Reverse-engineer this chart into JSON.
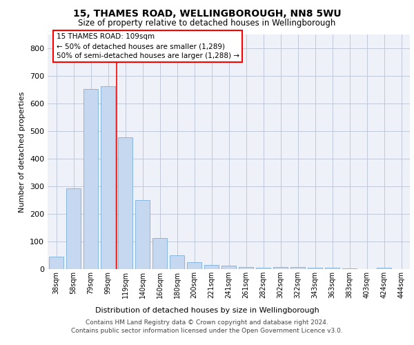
{
  "title_line1": "15, THAMES ROAD, WELLINGBOROUGH, NN8 5WU",
  "title_line2": "Size of property relative to detached houses in Wellingborough",
  "xlabel": "Distribution of detached houses by size in Wellingborough",
  "ylabel": "Number of detached properties",
  "categories": [
    "38sqm",
    "58sqm",
    "79sqm",
    "99sqm",
    "119sqm",
    "140sqm",
    "160sqm",
    "180sqm",
    "200sqm",
    "221sqm",
    "241sqm",
    "261sqm",
    "282sqm",
    "302sqm",
    "322sqm",
    "343sqm",
    "363sqm",
    "383sqm",
    "403sqm",
    "424sqm",
    "444sqm"
  ],
  "values": [
    45,
    293,
    652,
    662,
    478,
    250,
    113,
    50,
    25,
    14,
    13,
    8,
    5,
    8,
    7,
    4,
    4,
    2,
    1,
    5,
    1
  ],
  "bar_color": "#c5d8f0",
  "bar_edge_color": "#7ab0d8",
  "grid_color": "#c0c8d8",
  "background_color": "#eef2f8",
  "annotation_line1": "15 THAMES ROAD: 109sqm",
  "annotation_line2": "← 50% of detached houses are smaller (1,289)",
  "annotation_line3": "50% of semi-detached houses are larger (1,288) →",
  "red_line_x": 3.5,
  "ylim": [
    0,
    850
  ],
  "yticks": [
    0,
    100,
    200,
    300,
    400,
    500,
    600,
    700,
    800
  ],
  "footer_line1": "Contains HM Land Registry data © Crown copyright and database right 2024.",
  "footer_line2": "Contains public sector information licensed under the Open Government Licence v3.0."
}
